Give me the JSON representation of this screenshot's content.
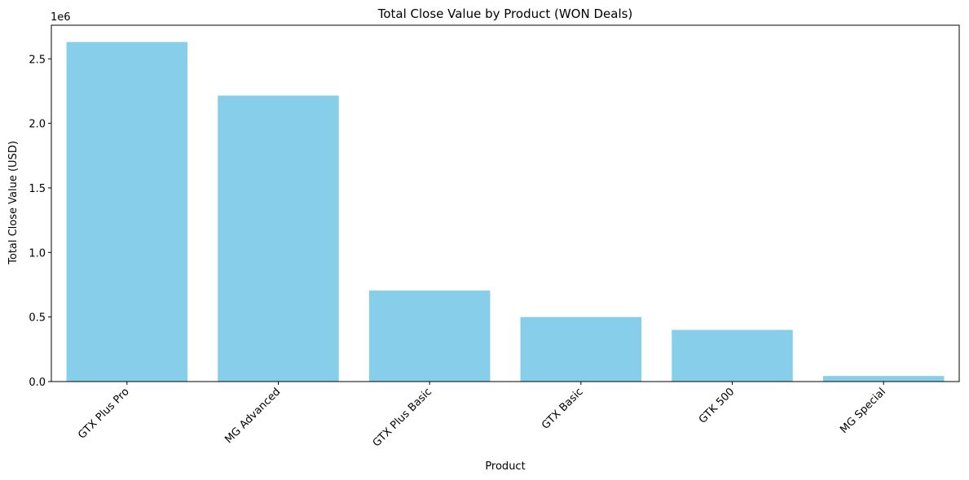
{
  "chart_data": {
    "type": "bar",
    "title": "Total Close Value by Product (WON Deals)",
    "xlabel": "Product",
    "ylabel": "Total Close Value (USD)",
    "y_multiplier_label": "1e6",
    "categories": [
      "GTX Plus Pro",
      "MG Advanced",
      "GTX Plus Basic",
      "GTX Basic",
      "GTK 500",
      "MG Special"
    ],
    "values": [
      2630000,
      2215000,
      705000,
      500000,
      400000,
      43000
    ],
    "ylim": [
      0,
      2760000
    ],
    "yticks": [
      0,
      500000,
      1000000,
      1500000,
      2000000,
      2500000
    ],
    "ytick_labels": [
      "0.0",
      "0.5",
      "1.0",
      "1.5",
      "2.0",
      "2.5"
    ],
    "bar_color": "#87ceeb",
    "grid": false,
    "legend": "none"
  }
}
